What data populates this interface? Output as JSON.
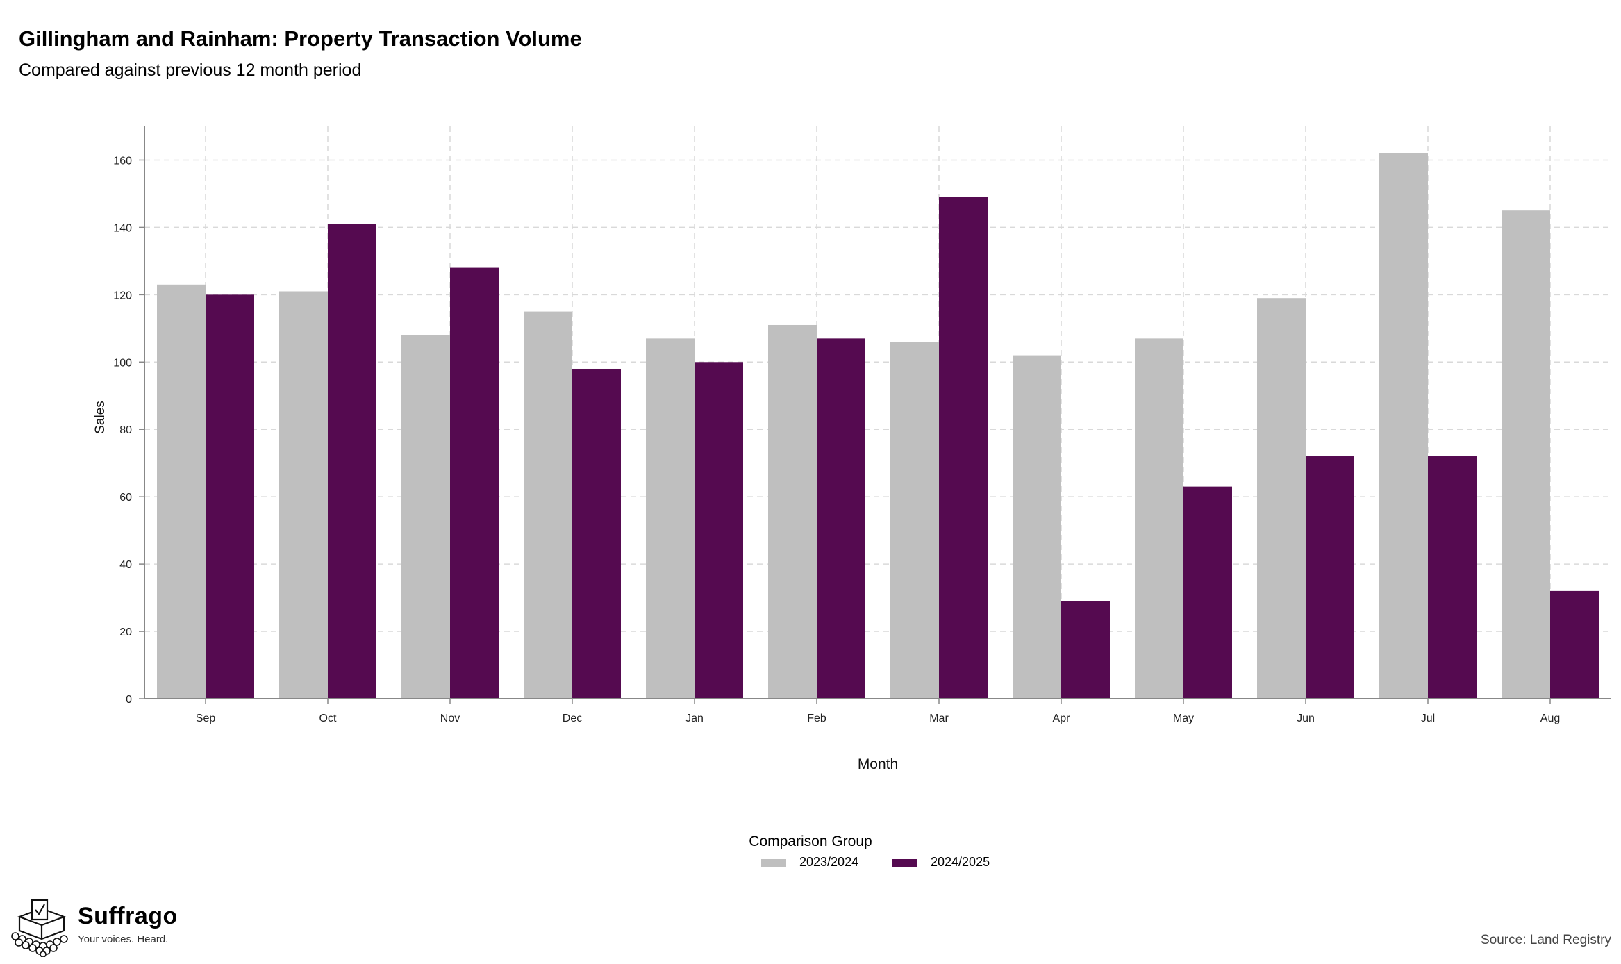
{
  "title": "Gillingham and Rainham: Property Transaction Volume",
  "subtitle": "Compared against previous 12 month period",
  "source": "Source: Land Registry",
  "brand": {
    "name": "Suffrago",
    "tagline": "Your voices. Heard."
  },
  "legend_title": "Comparison Group",
  "chart_data": {
    "type": "bar",
    "xlabel": "Month",
    "ylabel": "Sales",
    "ylim": [
      0,
      170
    ],
    "yticks": [
      0,
      20,
      40,
      60,
      80,
      100,
      120,
      140,
      160
    ],
    "grid": true,
    "legend_position": "bottom",
    "categories": [
      "Sep",
      "Oct",
      "Nov",
      "Dec",
      "Jan",
      "Feb",
      "Mar",
      "Apr",
      "May",
      "Jun",
      "Jul",
      "Aug"
    ],
    "series": [
      {
        "name": "2023/2024",
        "color": "#bfbfbf",
        "values": [
          123,
          121,
          108,
          115,
          107,
          111,
          106,
          102,
          107,
          119,
          162,
          145
        ]
      },
      {
        "name": "2024/2025",
        "color": "#550a50",
        "values": [
          120,
          141,
          128,
          98,
          100,
          107,
          149,
          29,
          63,
          72,
          72,
          32
        ]
      }
    ]
  }
}
